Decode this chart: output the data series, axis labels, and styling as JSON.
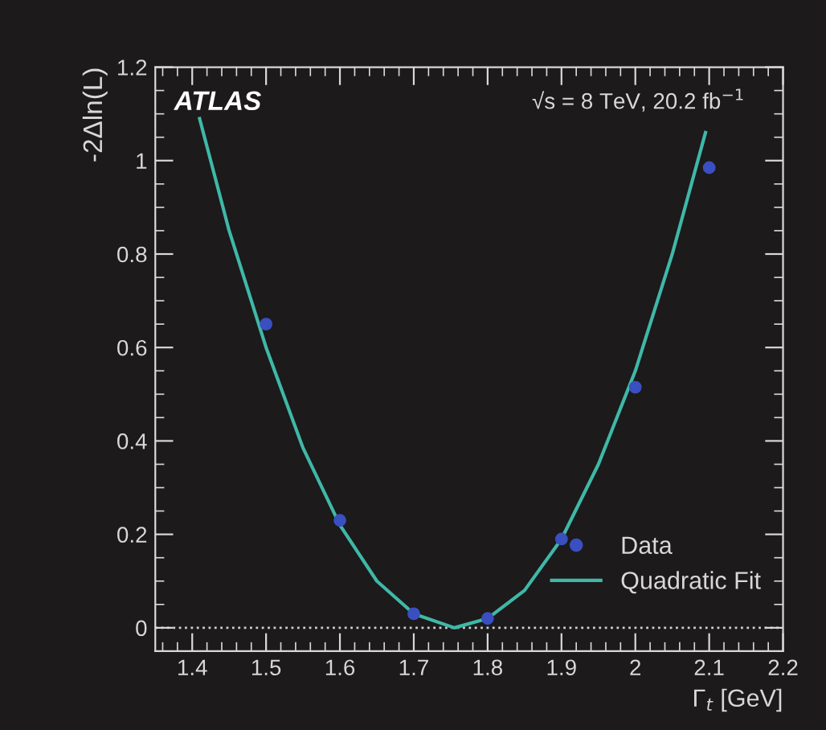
{
  "chart_data": {
    "type": "scatter",
    "xlabel": "Γ$_{t}$ [GeV]",
    "ylabel": "-2Δln(L)",
    "annotations": [
      "ATLAS",
      "√s = 8 TeV, 20.2 fb$^{−1}$"
    ],
    "xlim": [
      1.35,
      2.2
    ],
    "ylim": [
      -0.05,
      1.2
    ],
    "xticks": [
      1.4,
      1.5,
      1.6,
      1.7,
      1.8,
      1.9,
      2,
      2.1,
      2.2
    ],
    "yticks": [
      0,
      0.2,
      0.4,
      0.6,
      0.8,
      1,
      1.2
    ],
    "grid": false,
    "legend": "bottom right",
    "ref_lines": [
      {
        "axis": "y",
        "value": 0,
        "color": "#d0d0d0",
        "line_style": "dotted"
      }
    ],
    "series": [
      {
        "name": "Data",
        "marker": "circle",
        "color": "#3a4fc0",
        "x": [
          1.5,
          1.6,
          1.7,
          1.8,
          1.9,
          2.0,
          2.1
        ],
        "values": [
          0.65,
          0.23,
          0.03,
          0.02,
          0.19,
          0.515,
          0.985
        ]
      },
      {
        "name": "Quadratic Fit",
        "type": "line",
        "marker": "none",
        "color": "#3fb8a8",
        "line_style": "solid",
        "x": [
          1.41,
          1.45,
          1.5,
          1.55,
          1.6,
          1.65,
          1.7,
          1.755,
          1.8,
          1.85,
          1.9,
          1.95,
          2.0,
          2.05,
          2.095
        ],
        "values": [
          1.09,
          0.85,
          0.6,
          0.385,
          0.22,
          0.1,
          0.03,
          0.0,
          0.02,
          0.08,
          0.19,
          0.35,
          0.55,
          0.8,
          1.06
        ]
      }
    ]
  }
}
